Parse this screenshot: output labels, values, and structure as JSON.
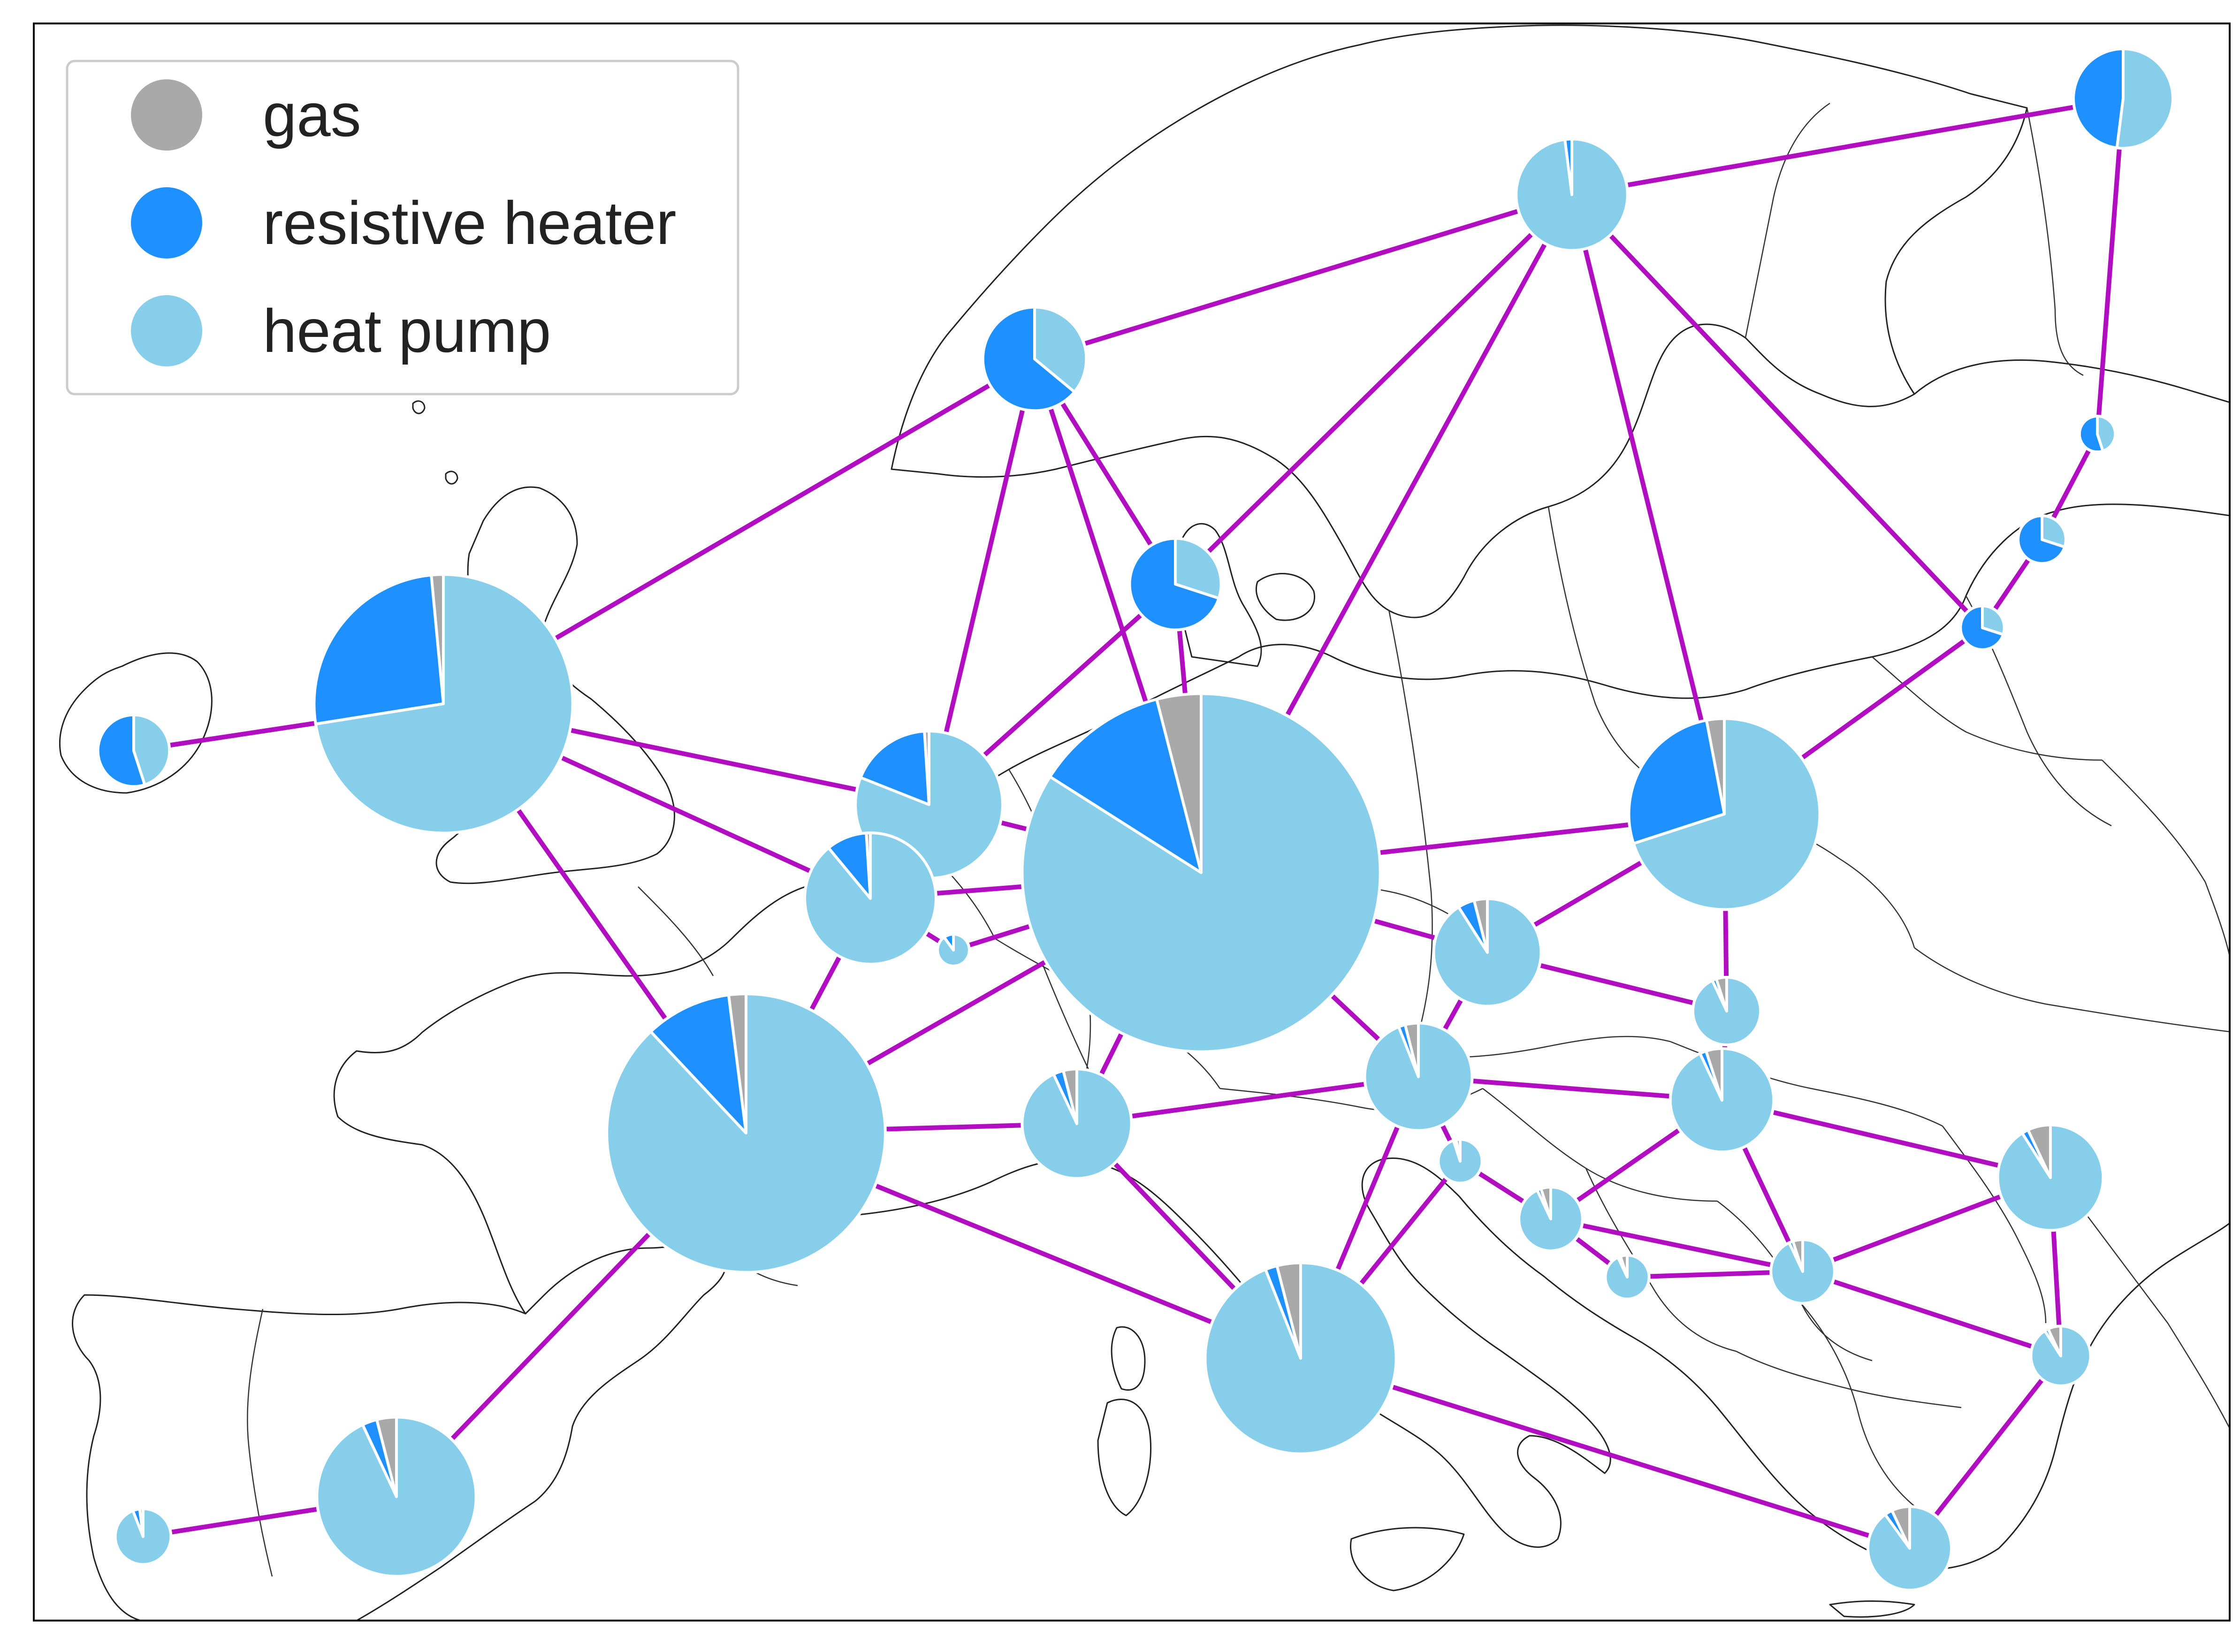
{
  "legend": {
    "items": [
      {
        "label": "gas",
        "color": "#a9a9a9"
      },
      {
        "label": "resistive heater",
        "color": "#1e90ff"
      },
      {
        "label": "heat pump",
        "color": "#87ceeb"
      }
    ]
  },
  "colors": {
    "link": "#b10ec2",
    "coastline": "#222222",
    "frame": "#000000"
  },
  "chart_data": {
    "type": "pie-map",
    "series_order": [
      "gas",
      "resistive heater",
      "heat pump"
    ],
    "nodes": [
      {
        "id": "FI",
        "size": 0.5,
        "shares": [
          0,
          0.48,
          0.52
        ]
      },
      {
        "id": "SE",
        "size": 0.56,
        "shares": [
          0,
          0.02,
          0.98
        ]
      },
      {
        "id": "NO",
        "size": 0.52,
        "shares": [
          0,
          0.64,
          0.36
        ]
      },
      {
        "id": "EE",
        "size": 0.18,
        "shares": [
          0,
          0.55,
          0.45
        ]
      },
      {
        "id": "LV",
        "size": 0.24,
        "shares": [
          0,
          0.7,
          0.3
        ]
      },
      {
        "id": "LT",
        "size": 0.22,
        "shares": [
          0,
          0.7,
          0.3
        ]
      },
      {
        "id": "DK",
        "size": 0.46,
        "shares": [
          0,
          0.7,
          0.3
        ]
      },
      {
        "id": "GB",
        "size": 1.3,
        "shares": [
          0.015,
          0.26,
          0.725
        ]
      },
      {
        "id": "IE",
        "size": 0.36,
        "shares": [
          0,
          0.55,
          0.45
        ]
      },
      {
        "id": "NL",
        "size": 0.74,
        "shares": [
          0.01,
          0.18,
          0.81
        ]
      },
      {
        "id": "BE",
        "size": 0.66,
        "shares": [
          0.01,
          0.1,
          0.89
        ]
      },
      {
        "id": "LU",
        "size": 0.16,
        "shares": [
          0,
          0.1,
          0.9
        ]
      },
      {
        "id": "DE",
        "size": 1.8,
        "shares": [
          0.04,
          0.12,
          0.84
        ]
      },
      {
        "id": "PL",
        "size": 0.96,
        "shares": [
          0.03,
          0.27,
          0.7
        ]
      },
      {
        "id": "CZ",
        "size": 0.54,
        "shares": [
          0.04,
          0.05,
          0.91
        ]
      },
      {
        "id": "SK",
        "size": 0.34,
        "shares": [
          0.05,
          0.02,
          0.93
        ]
      },
      {
        "id": "AT",
        "size": 0.54,
        "shares": [
          0.04,
          0.02,
          0.94
        ]
      },
      {
        "id": "HU",
        "size": 0.52,
        "shares": [
          0.05,
          0.02,
          0.93
        ]
      },
      {
        "id": "FR",
        "size": 1.4,
        "shares": [
          0.02,
          0.1,
          0.88
        ]
      },
      {
        "id": "CH",
        "size": 0.55,
        "shares": [
          0.04,
          0.03,
          0.93
        ]
      },
      {
        "id": "SI",
        "size": 0.22,
        "shares": [
          0.03,
          0.02,
          0.95
        ]
      },
      {
        "id": "HR",
        "size": 0.32,
        "shares": [
          0.05,
          0.02,
          0.93
        ]
      },
      {
        "id": "BA",
        "size": 0.22,
        "shares": [
          0.05,
          0.02,
          0.93
        ]
      },
      {
        "id": "RS",
        "size": 0.32,
        "shares": [
          0.05,
          0.02,
          0.93
        ]
      },
      {
        "id": "RO",
        "size": 0.53,
        "shares": [
          0.07,
          0.02,
          0.91
        ]
      },
      {
        "id": "BG",
        "size": 0.3,
        "shares": [
          0.07,
          0.02,
          0.91
        ]
      },
      {
        "id": "IT",
        "size": 0.96,
        "shares": [
          0.04,
          0.02,
          0.94
        ]
      },
      {
        "id": "GR",
        "size": 0.42,
        "shares": [
          0.07,
          0.03,
          0.9
        ]
      },
      {
        "id": "ES",
        "size": 0.8,
        "shares": [
          0.04,
          0.03,
          0.93
        ]
      },
      {
        "id": "PT",
        "size": 0.28,
        "shares": [
          0.02,
          0.04,
          0.94
        ]
      }
    ],
    "links": [
      [
        "NO",
        "SE"
      ],
      [
        "SE",
        "FI"
      ],
      [
        "FI",
        "EE"
      ],
      [
        "EE",
        "LV"
      ],
      [
        "LV",
        "LT"
      ],
      [
        "SE",
        "DK"
      ],
      [
        "SE",
        "DE"
      ],
      [
        "SE",
        "PL"
      ],
      [
        "SE",
        "LT"
      ],
      [
        "NO",
        "GB"
      ],
      [
        "NO",
        "DK"
      ],
      [
        "NO",
        "NL"
      ],
      [
        "NO",
        "DE"
      ],
      [
        "DK",
        "DE"
      ],
      [
        "DK",
        "NL"
      ],
      [
        "GB",
        "IE"
      ],
      [
        "GB",
        "NL"
      ],
      [
        "GB",
        "BE"
      ],
      [
        "GB",
        "FR"
      ],
      [
        "NL",
        "BE"
      ],
      [
        "NL",
        "DE"
      ],
      [
        "BE",
        "DE"
      ],
      [
        "BE",
        "LU"
      ],
      [
        "BE",
        "FR"
      ],
      [
        "LU",
        "DE"
      ],
      [
        "FR",
        "DE"
      ],
      [
        "FR",
        "CH"
      ],
      [
        "FR",
        "IT"
      ],
      [
        "FR",
        "ES"
      ],
      [
        "ES",
        "PT"
      ],
      [
        "DE",
        "PL"
      ],
      [
        "DE",
        "CZ"
      ],
      [
        "DE",
        "AT"
      ],
      [
        "DE",
        "CH"
      ],
      [
        "PL",
        "CZ"
      ],
      [
        "PL",
        "SK"
      ],
      [
        "PL",
        "LT"
      ],
      [
        "CZ",
        "SK"
      ],
      [
        "CZ",
        "AT"
      ],
      [
        "SK",
        "HU"
      ],
      [
        "AT",
        "CH"
      ],
      [
        "AT",
        "HU"
      ],
      [
        "AT",
        "SI"
      ],
      [
        "AT",
        "IT"
      ],
      [
        "CH",
        "IT"
      ],
      [
        "SI",
        "IT"
      ],
      [
        "SI",
        "HR"
      ],
      [
        "HU",
        "HR"
      ],
      [
        "HU",
        "RS"
      ],
      [
        "HU",
        "RO"
      ],
      [
        "HR",
        "BA"
      ],
      [
        "HR",
        "RS"
      ],
      [
        "BA",
        "RS"
      ],
      [
        "RS",
        "RO"
      ],
      [
        "RS",
        "BG"
      ],
      [
        "RO",
        "BG"
      ],
      [
        "BG",
        "GR"
      ],
      [
        "IT",
        "GR"
      ]
    ]
  }
}
